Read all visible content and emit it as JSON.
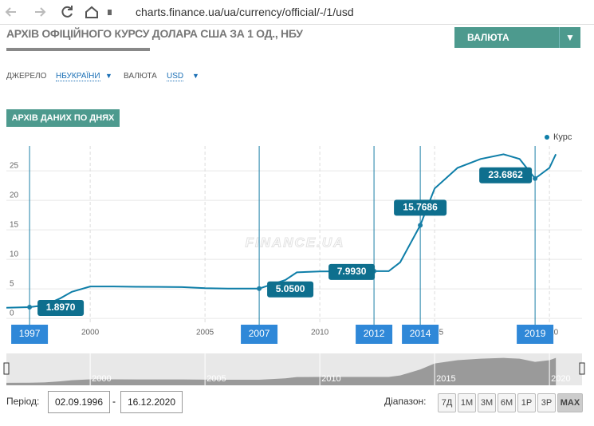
{
  "browser": {
    "url": "charts.finance.ua/ua/currency/official/-/1/usd"
  },
  "header": {
    "title": "АРХІВ ОФІЦІЙНОГО КУРСУ ДОЛАРА США ЗА 1 ОД., НБУ",
    "currency_button": "ВАЛЮТА"
  },
  "filters": {
    "source_label": "ДЖЕРЕЛО",
    "source": "НБУКРАЇНИ",
    "currency_label": "ВАЛЮТА",
    "currency": "USD"
  },
  "tab": "АРХІВ ДАНИХ ПО ДНЯХ",
  "chart": {
    "type": "line",
    "watermark": "FINANCE.UA",
    "legend": "top-right",
    "series": [
      {
        "name": "Курс",
        "color": "#0e7ea8",
        "x": [
          1996.35,
          1997.36,
          1998.0,
          1998.7,
          1999.2,
          2000,
          2001,
          2002,
          2003,
          2004,
          2005,
          2006,
          2007.36,
          2008.5,
          2009,
          2010,
          2011,
          2012.36,
          2013,
          2013.5,
          2014.375,
          2015,
          2016,
          2017,
          2018,
          2018.7,
          2019.375,
          2020,
          2020.28
        ],
        "values": [
          1.8,
          1.897,
          2.2,
          3.4,
          4.5,
          5.4,
          5.4,
          5.35,
          5.33,
          5.3,
          5.12,
          5.05,
          5.05,
          6.5,
          7.8,
          7.95,
          7.97,
          7.993,
          8.0,
          9.5,
          15.7686,
          22,
          25.5,
          27,
          27.8,
          27,
          23.6862,
          25.5,
          27.8
        ]
      }
    ],
    "xlim": [
      1996.35,
      2021.42
    ],
    "xticks": [
      2000,
      2005,
      2010,
      2015,
      2020
    ],
    "ylim": [
      -0.8,
      29.2
    ],
    "yticks": [
      0,
      5,
      10,
      15,
      20,
      25
    ],
    "grid": true,
    "flags": [
      {
        "label": "1997",
        "x": 1997.36,
        "value": 1.897,
        "value_label": "1.8970"
      },
      {
        "label": "2007",
        "x": 2007.36,
        "value": 5.05,
        "value_label": "5.0500"
      },
      {
        "label": "2012",
        "x": 2012.36,
        "value": 7.993,
        "value_label": "7.9930"
      },
      {
        "label": "2014",
        "x": 2014.375,
        "value": 15.7686,
        "value_label": "15.7686"
      },
      {
        "label": "2019",
        "x": 2019.375,
        "value": 23.6862,
        "value_label": "23.6862"
      }
    ]
  },
  "footer": {
    "period_label": "Період:",
    "from": "02.09.1996",
    "to": "16.12.2020",
    "range_label": "Діапазон:",
    "ranges": [
      "7Д",
      "1М",
      "3М",
      "6М",
      "1Р",
      "3Р",
      "MAX"
    ],
    "selected": 6
  }
}
